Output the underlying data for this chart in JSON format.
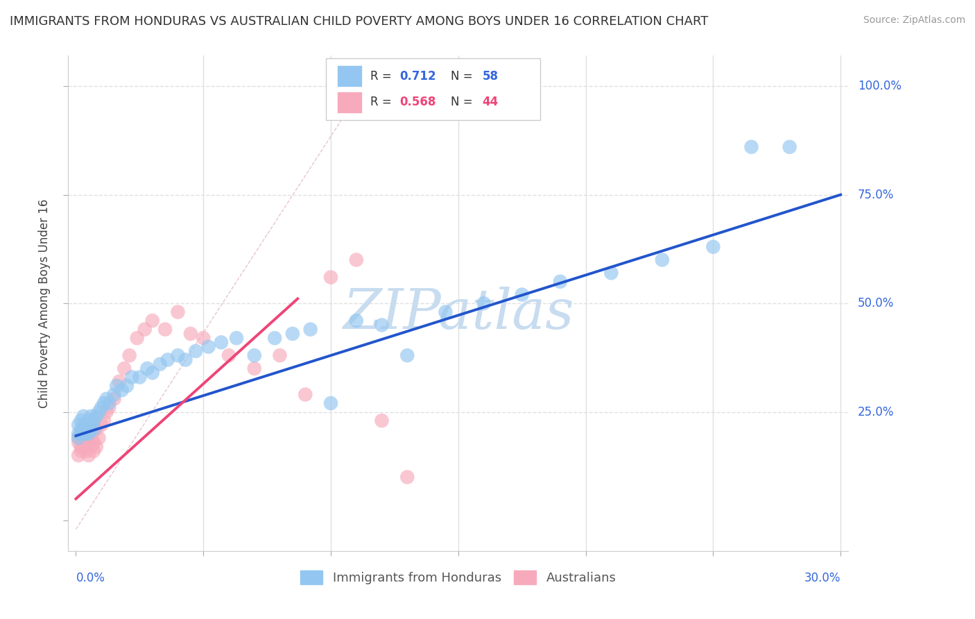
{
  "title": "IMMIGRANTS FROM HONDURAS VS AUSTRALIAN CHILD POVERTY AMONG BOYS UNDER 16 CORRELATION CHART",
  "source": "Source: ZipAtlas.com",
  "ylabel": "Child Poverty Among Boys Under 16",
  "color_blue": "#93C6F0",
  "color_pink": "#F7AABB",
  "color_blue_line": "#2255CC",
  "color_pink_line": "#EE4477",
  "color_diag": "#CCBBCC",
  "watermark_color": "#C8DCF0",
  "grid_color": "#E0E0E0",
  "background_color": "#FFFFFF",
  "xlim": [
    0.0,
    0.3
  ],
  "ylim": [
    -0.05,
    1.05
  ],
  "ytick_vals": [
    0.0,
    0.25,
    0.5,
    0.75,
    1.0
  ],
  "ytick_labels": [
    "",
    "25.0%",
    "50.0%",
    "75.0%",
    "100.0%"
  ],
  "xtick_left_label": "0.0%",
  "xtick_right_label": "30.0%",
  "legend_items": [
    {
      "color": "#93C6F0",
      "r": "0.712",
      "n": "58",
      "text_color": "#2255CC"
    },
    {
      "color": "#F7AABB",
      "r": "0.568",
      "n": "44",
      "text_color": "#EE4477"
    }
  ],
  "bottom_legend": [
    "Immigrants from Honduras",
    "Australians"
  ],
  "blue_x": [
    0.001,
    0.001,
    0.001,
    0.002,
    0.002,
    0.002,
    0.003,
    0.003,
    0.003,
    0.003,
    0.004,
    0.004,
    0.005,
    0.005,
    0.005,
    0.006,
    0.006,
    0.007,
    0.007,
    0.008,
    0.009,
    0.01,
    0.011,
    0.012,
    0.013,
    0.015,
    0.016,
    0.018,
    0.02,
    0.022,
    0.025,
    0.028,
    0.03,
    0.033,
    0.036,
    0.04,
    0.043,
    0.047,
    0.052,
    0.057,
    0.063,
    0.07,
    0.078,
    0.085,
    0.092,
    0.1,
    0.11,
    0.12,
    0.13,
    0.145,
    0.16,
    0.175,
    0.19,
    0.21,
    0.23,
    0.25,
    0.265,
    0.28
  ],
  "blue_y": [
    0.2,
    0.22,
    0.19,
    0.21,
    0.2,
    0.23,
    0.22,
    0.2,
    0.24,
    0.21,
    0.22,
    0.2,
    0.21,
    0.23,
    0.2,
    0.24,
    0.22,
    0.23,
    0.21,
    0.24,
    0.25,
    0.26,
    0.27,
    0.28,
    0.27,
    0.29,
    0.31,
    0.3,
    0.31,
    0.33,
    0.33,
    0.35,
    0.34,
    0.36,
    0.37,
    0.38,
    0.37,
    0.39,
    0.4,
    0.41,
    0.42,
    0.38,
    0.42,
    0.43,
    0.44,
    0.27,
    0.46,
    0.45,
    0.38,
    0.48,
    0.5,
    0.52,
    0.55,
    0.57,
    0.6,
    0.63,
    0.86,
    0.86
  ],
  "pink_x": [
    0.001,
    0.001,
    0.001,
    0.002,
    0.002,
    0.002,
    0.003,
    0.003,
    0.003,
    0.004,
    0.004,
    0.005,
    0.005,
    0.005,
    0.006,
    0.006,
    0.007,
    0.007,
    0.008,
    0.008,
    0.009,
    0.01,
    0.011,
    0.012,
    0.013,
    0.015,
    0.017,
    0.019,
    0.021,
    0.024,
    0.027,
    0.03,
    0.035,
    0.04,
    0.045,
    0.05,
    0.06,
    0.07,
    0.08,
    0.09,
    0.1,
    0.11,
    0.12,
    0.13
  ],
  "pink_y": [
    0.19,
    0.15,
    0.18,
    0.16,
    0.2,
    0.17,
    0.19,
    0.17,
    0.21,
    0.18,
    0.16,
    0.2,
    0.15,
    0.18,
    0.17,
    0.19,
    0.18,
    0.16,
    0.21,
    0.17,
    0.19,
    0.22,
    0.23,
    0.25,
    0.26,
    0.28,
    0.32,
    0.35,
    0.38,
    0.42,
    0.44,
    0.46,
    0.44,
    0.48,
    0.43,
    0.42,
    0.38,
    0.35,
    0.38,
    0.29,
    0.56,
    0.6,
    0.23,
    0.1
  ]
}
